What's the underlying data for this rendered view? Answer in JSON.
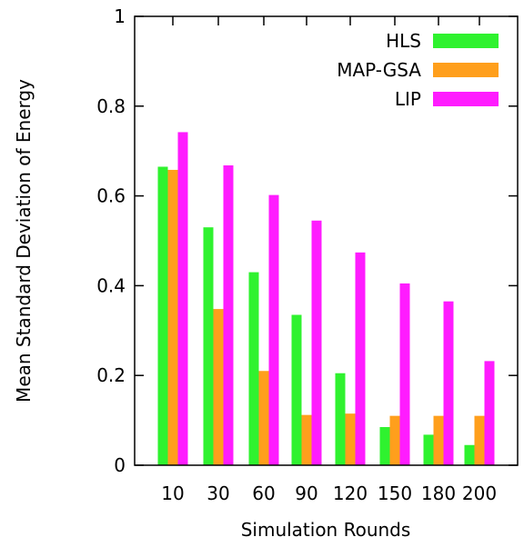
{
  "chart_data": {
    "type": "bar",
    "title": "",
    "xlabel": "Simulation Rounds",
    "ylabel": "Mean Standard Deviation of Energy",
    "categories": [
      "10",
      "30",
      "60",
      "90",
      "120",
      "150",
      "180",
      "200"
    ],
    "ylim": [
      0,
      1
    ],
    "yticks": [
      "0",
      "0.2",
      "0.4",
      "0.6",
      "0.8",
      "1"
    ],
    "grid": false,
    "legend_position": "top-right",
    "series": [
      {
        "name": "HLS",
        "color": "#2ff22f",
        "values": [
          0.665,
          0.53,
          0.43,
          0.335,
          0.205,
          0.085,
          0.068,
          0.045
        ]
      },
      {
        "name": "MAP-GSA",
        "color": "#ff9f1c",
        "values": [
          0.658,
          0.348,
          0.21,
          0.112,
          0.115,
          0.11,
          0.11,
          0.11
        ]
      },
      {
        "name": "LIP",
        "color": "#ff1cff",
        "values": [
          0.742,
          0.668,
          0.602,
          0.545,
          0.474,
          0.405,
          0.365,
          0.232
        ]
      }
    ]
  }
}
